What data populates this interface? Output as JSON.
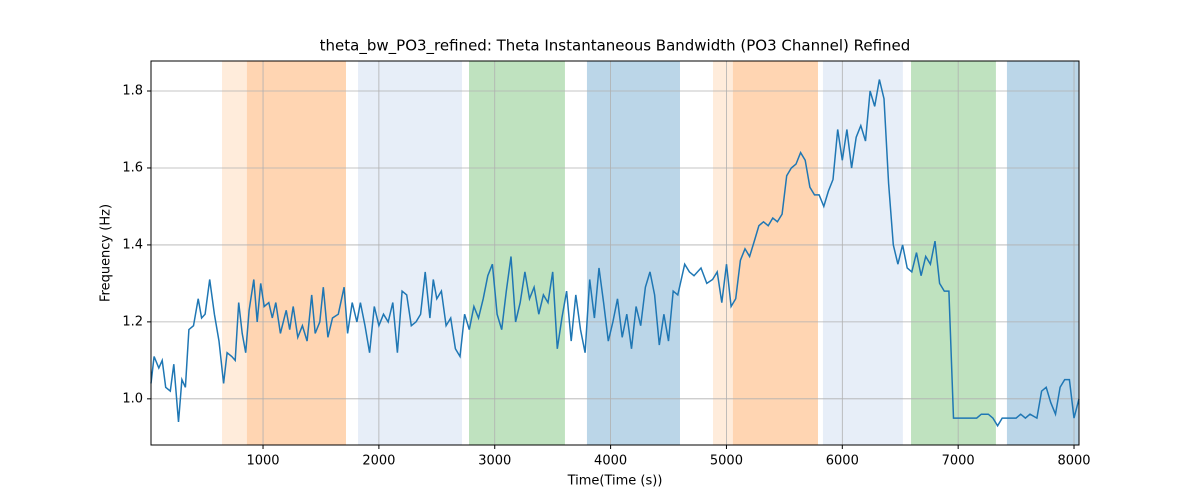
{
  "chart_data": {
    "type": "line",
    "title": "theta_bw_PO3_refined: Theta Instantaneous Bandwidth (PO3 Channel) Refined",
    "xlabel": "Time(Time (s))",
    "ylabel": "Frequency (Hz)",
    "xlim": [
      33,
      8043
    ],
    "ylim": [
      0.88,
      1.878
    ],
    "xticks": [
      1000,
      2000,
      3000,
      4000,
      5000,
      6000,
      7000,
      8000
    ],
    "yticks": [
      {
        "value": 1,
        "label": "1.0"
      },
      {
        "value": 1.2,
        "label": "1.2"
      },
      {
        "value": 1.4,
        "label": "1.4"
      },
      {
        "value": 1.6,
        "label": "1.6"
      },
      {
        "value": 1.8,
        "label": "1.8"
      }
    ],
    "grid": true,
    "spans": [
      {
        "x": [
          646,
          1716
        ],
        "color": "#ff7f0e",
        "opacity": 0.15
      },
      {
        "x": [
          861,
          1716
        ],
        "color": "#ff7f0e",
        "opacity": 0.2
      },
      {
        "x": [
          1820,
          2717
        ],
        "color": "#aec7e8",
        "opacity": 0.3
      },
      {
        "x": [
          2778,
          3606
        ],
        "color": "#2ca02c",
        "opacity": 0.3
      },
      {
        "x": [
          3796,
          4599
        ],
        "color": "#1f77b4",
        "opacity": 0.3
      },
      {
        "x": [
          4884,
          5790
        ],
        "color": "#ff7f0e",
        "opacity": 0.15
      },
      {
        "x": [
          5056,
          5790
        ],
        "color": "#ff7f0e",
        "opacity": 0.2
      },
      {
        "x": [
          5833,
          6523
        ],
        "color": "#aec7e8",
        "opacity": 0.3
      },
      {
        "x": [
          6593,
          7326
        ],
        "color": "#2ca02c",
        "opacity": 0.3
      },
      {
        "x": [
          7421,
          8043
        ],
        "color": "#1f77b4",
        "opacity": 0.3
      }
    ],
    "series": [
      {
        "color": "#1f77b4",
        "x": [
          33,
          60,
          100,
          130,
          160,
          200,
          230,
          270,
          300,
          330,
          360,
          400,
          440,
          470,
          500,
          540,
          580,
          620,
          660,
          690,
          730,
          760,
          790,
          820,
          850,
          880,
          920,
          950,
          980,
          1010,
          1050,
          1080,
          1110,
          1150,
          1200,
          1230,
          1260,
          1300,
          1340,
          1380,
          1420,
          1450,
          1490,
          1520,
          1560,
          1600,
          1650,
          1700,
          1730,
          1770,
          1810,
          1840,
          1880,
          1920,
          1960,
          2000,
          2040,
          2080,
          2120,
          2160,
          2200,
          2240,
          2280,
          2320,
          2360,
          2400,
          2440,
          2470,
          2500,
          2540,
          2580,
          2620,
          2660,
          2700,
          2740,
          2780,
          2820,
          2860,
          2900,
          2940,
          2980,
          3020,
          3060,
          3100,
          3140,
          3180,
          3220,
          3260,
          3300,
          3340,
          3380,
          3420,
          3460,
          3500,
          3540,
          3580,
          3620,
          3660,
          3700,
          3740,
          3780,
          3820,
          3860,
          3900,
          3940,
          3980,
          4020,
          4060,
          4100,
          4140,
          4180,
          4220,
          4260,
          4300,
          4340,
          4380,
          4420,
          4460,
          4500,
          4540,
          4580,
          4640,
          4680,
          4720,
          4780,
          4830,
          4880,
          4920,
          4960,
          5000,
          5040,
          5080,
          5120,
          5160,
          5200,
          5240,
          5280,
          5320,
          5360,
          5400,
          5440,
          5480,
          5520,
          5560,
          5600,
          5640,
          5680,
          5720,
          5760,
          5800,
          5840,
          5880,
          5920,
          5960,
          6000,
          6040,
          6080,
          6120,
          6160,
          6200,
          6240,
          6280,
          6320,
          6360,
          6400,
          6440,
          6480,
          6520,
          6560,
          6600,
          6640,
          6680,
          6720,
          6760,
          6800,
          6840,
          6880,
          6920,
          6960,
          7000,
          7100,
          7160,
          7200,
          7260,
          7300,
          7340,
          7380,
          7460,
          7500,
          7540,
          7580,
          7620,
          7680,
          7720,
          7760,
          7800,
          7840,
          7880,
          7920,
          7960,
          8000,
          8043
        ],
        "values": [
          1.04,
          1.11,
          1.08,
          1.1,
          1.03,
          1.02,
          1.09,
          0.94,
          1.05,
          1.03,
          1.18,
          1.19,
          1.26,
          1.21,
          1.22,
          1.31,
          1.22,
          1.15,
          1.04,
          1.12,
          1.11,
          1.1,
          1.25,
          1.17,
          1.12,
          1.23,
          1.31,
          1.2,
          1.3,
          1.24,
          1.25,
          1.21,
          1.25,
          1.17,
          1.23,
          1.18,
          1.24,
          1.16,
          1.19,
          1.15,
          1.27,
          1.17,
          1.2,
          1.29,
          1.16,
          1.21,
          1.22,
          1.29,
          1.17,
          1.25,
          1.2,
          1.25,
          1.19,
          1.12,
          1.24,
          1.19,
          1.22,
          1.2,
          1.25,
          1.12,
          1.28,
          1.27,
          1.19,
          1.2,
          1.22,
          1.33,
          1.21,
          1.31,
          1.26,
          1.28,
          1.19,
          1.21,
          1.13,
          1.11,
          1.22,
          1.18,
          1.24,
          1.21,
          1.26,
          1.32,
          1.35,
          1.22,
          1.18,
          1.28,
          1.37,
          1.2,
          1.25,
          1.33,
          1.26,
          1.29,
          1.22,
          1.27,
          1.25,
          1.33,
          1.13,
          1.21,
          1.28,
          1.15,
          1.27,
          1.18,
          1.12,
          1.31,
          1.21,
          1.34,
          1.25,
          1.15,
          1.2,
          1.26,
          1.16,
          1.22,
          1.13,
          1.24,
          1.19,
          1.29,
          1.33,
          1.27,
          1.14,
          1.22,
          1.15,
          1.28,
          1.27,
          1.35,
          1.33,
          1.32,
          1.34,
          1.3,
          1.31,
          1.33,
          1.25,
          1.35,
          1.24,
          1.26,
          1.36,
          1.39,
          1.37,
          1.41,
          1.45,
          1.46,
          1.45,
          1.47,
          1.46,
          1.48,
          1.58,
          1.6,
          1.61,
          1.64,
          1.62,
          1.55,
          1.53,
          1.53,
          1.5,
          1.54,
          1.57,
          1.7,
          1.62,
          1.7,
          1.6,
          1.68,
          1.71,
          1.67,
          1.8,
          1.76,
          1.83,
          1.78,
          1.56,
          1.4,
          1.35,
          1.4,
          1.34,
          1.33,
          1.38,
          1.32,
          1.37,
          1.35,
          1.41,
          1.3,
          1.28,
          1.28,
          0.95,
          0.95,
          0.95,
          0.95,
          0.96,
          0.96,
          0.95,
          0.93,
          0.95,
          0.95,
          0.95,
          0.96,
          0.95,
          0.96,
          0.95,
          1.02,
          1.03,
          0.99,
          0.96,
          1.03,
          1.05,
          1.05,
          0.95,
          1.0
        ]
      }
    ]
  }
}
